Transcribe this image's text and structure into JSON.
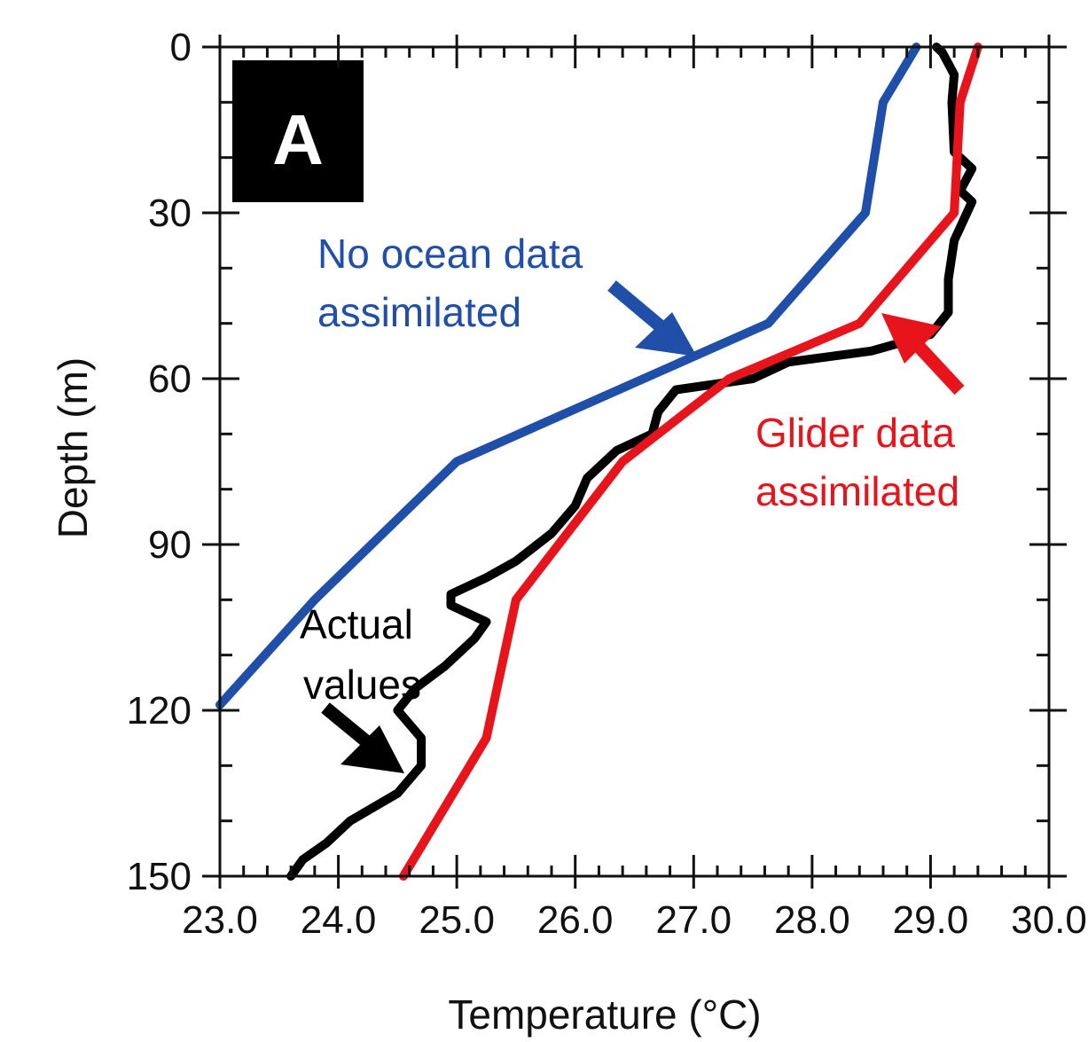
{
  "chart_data": {
    "type": "line",
    "panel_label": "A",
    "xlabel": "Temperature (°C)",
    "ylabel": "Depth (m)",
    "xlim": [
      23.0,
      30.0
    ],
    "ylim": [
      0,
      150
    ],
    "y_inverted": true,
    "x_ticks": [
      "23.0",
      "24.0",
      "25.0",
      "26.0",
      "27.0",
      "28.0",
      "29.0",
      "30.0"
    ],
    "y_ticks": [
      "0",
      "30",
      "60",
      "90",
      "120",
      "150"
    ],
    "series": [
      {
        "name": "No ocean data assimilated",
        "color": "#1f4fa8",
        "points": [
          [
            28.88,
            0
          ],
          [
            28.6,
            10
          ],
          [
            28.45,
            30
          ],
          [
            27.63,
            50
          ],
          [
            25.0,
            75
          ],
          [
            23.8,
            100
          ],
          [
            23.0,
            119
          ]
        ]
      },
      {
        "name": "Glider data assimilated",
        "color": "#e8141c",
        "points": [
          [
            29.4,
            0
          ],
          [
            29.25,
            10
          ],
          [
            29.2,
            30
          ],
          [
            28.4,
            50
          ],
          [
            27.3,
            60
          ],
          [
            26.4,
            75
          ],
          [
            25.5,
            100
          ],
          [
            25.25,
            125
          ],
          [
            24.55,
            150
          ]
        ]
      },
      {
        "name": "Actual values",
        "color": "#000000",
        "points": [
          [
            29.05,
            0
          ],
          [
            29.1,
            1
          ],
          [
            29.2,
            5
          ],
          [
            29.18,
            10
          ],
          [
            29.2,
            19
          ],
          [
            29.35,
            22
          ],
          [
            29.25,
            26
          ],
          [
            29.35,
            28
          ],
          [
            29.2,
            35
          ],
          [
            29.15,
            42
          ],
          [
            29.15,
            48
          ],
          [
            29.0,
            52
          ],
          [
            28.5,
            55
          ],
          [
            27.8,
            57
          ],
          [
            27.5,
            60
          ],
          [
            26.85,
            62
          ],
          [
            26.7,
            66
          ],
          [
            26.65,
            70
          ],
          [
            26.35,
            73
          ],
          [
            26.1,
            78
          ],
          [
            26.0,
            83
          ],
          [
            25.8,
            88
          ],
          [
            25.5,
            93
          ],
          [
            25.25,
            96
          ],
          [
            24.95,
            99
          ],
          [
            24.95,
            101
          ],
          [
            25.25,
            104
          ],
          [
            25.15,
            107
          ],
          [
            24.9,
            112
          ],
          [
            24.65,
            116
          ],
          [
            24.5,
            120
          ],
          [
            24.7,
            125
          ],
          [
            24.7,
            130
          ],
          [
            24.5,
            135
          ],
          [
            24.1,
            140
          ],
          [
            23.9,
            144
          ],
          [
            23.7,
            147
          ],
          [
            23.6,
            150
          ]
        ]
      }
    ],
    "annotations": [
      {
        "text_lines": [
          "No ocean data",
          "assimilated"
        ],
        "color": "#1f4fa8"
      },
      {
        "text_lines": [
          "Glider data",
          "assimilated"
        ],
        "color": "#e8141c"
      },
      {
        "text_lines": [
          "Actual",
          "values"
        ],
        "color": "#000000"
      }
    ]
  }
}
